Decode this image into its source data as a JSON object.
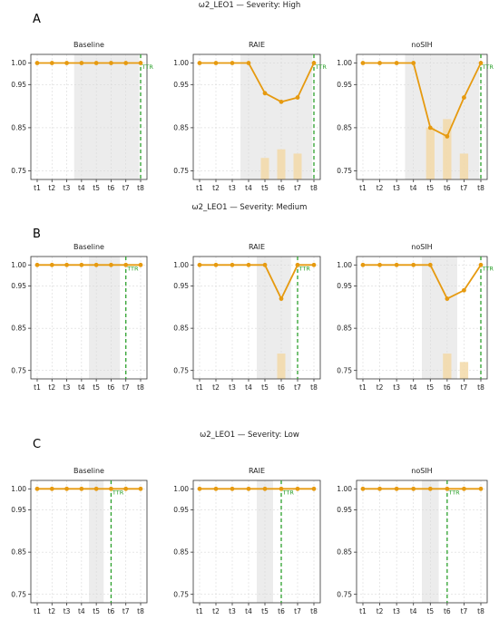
{
  "chart_data": [
    {
      "row": "A",
      "title": "ω2_LEO1 — Severity: High",
      "panels": [
        {
          "type": "line",
          "title": "Baseline",
          "x": [
            "t1",
            "t2",
            "t3",
            "t4",
            "t5",
            "t6",
            "t7",
            "t8"
          ],
          "values": [
            1.0,
            1.0,
            1.0,
            1.0,
            1.0,
            1.0,
            1.0,
            1.0
          ],
          "bars": [
            0,
            0,
            0,
            0,
            0,
            0,
            0,
            0
          ],
          "shade": [
            3.5,
            7.9
          ],
          "ttr_at": 8,
          "ttr_label": "TTR",
          "yticks": [
            "0.75",
            "0.85",
            "0.95",
            "1.00"
          ],
          "ylim": [
            0.73,
            1.02
          ]
        },
        {
          "type": "line",
          "title": "RAIE",
          "x": [
            "t1",
            "t2",
            "t3",
            "t4",
            "t5",
            "t6",
            "t7",
            "t8"
          ],
          "values": [
            1.0,
            1.0,
            1.0,
            1.0,
            0.93,
            0.91,
            0.92,
            1.0
          ],
          "bars": [
            0,
            0,
            0,
            0,
            0.78,
            0.8,
            0.79,
            0
          ],
          "shade": [
            3.5,
            7.9
          ],
          "ttr_at": 8,
          "ttr_label": "TTR",
          "yticks": [
            "0.75",
            "0.85",
            "0.95",
            "1.00"
          ],
          "ylim": [
            0.73,
            1.02
          ]
        },
        {
          "type": "line",
          "title": "noSIH",
          "x": [
            "t1",
            "t2",
            "t3",
            "t4",
            "t5",
            "t6",
            "t7",
            "t8"
          ],
          "values": [
            1.0,
            1.0,
            1.0,
            1.0,
            0.85,
            0.83,
            0.92,
            1.0
          ],
          "bars": [
            0,
            0,
            0,
            0,
            0.85,
            0.87,
            0.79,
            0
          ],
          "shade": [
            3.5,
            7.9
          ],
          "ttr_at": 8,
          "ttr_label": "TTR",
          "yticks": [
            "0.75",
            "0.85",
            "0.95",
            "1.00"
          ],
          "ylim": [
            0.73,
            1.02
          ]
        }
      ]
    },
    {
      "row": "B",
      "title": "ω2_LEO1 — Severity: Medium",
      "panels": [
        {
          "type": "line",
          "title": "Baseline",
          "x": [
            "t1",
            "t2",
            "t3",
            "t4",
            "t5",
            "t6",
            "t7",
            "t8"
          ],
          "values": [
            1.0,
            1.0,
            1.0,
            1.0,
            1.0,
            1.0,
            1.0,
            1.0
          ],
          "bars": [
            0,
            0,
            0,
            0,
            0,
            0,
            0,
            0
          ],
          "shade": [
            4.5,
            6.6
          ],
          "ttr_at": 7,
          "ttr_label": "TTR",
          "yticks": [
            "0.75",
            "0.85",
            "0.95",
            "1.00"
          ],
          "ylim": [
            0.73,
            1.02
          ]
        },
        {
          "type": "line",
          "title": "RAIE",
          "x": [
            "t1",
            "t2",
            "t3",
            "t4",
            "t5",
            "t6",
            "t7",
            "t8"
          ],
          "values": [
            1.0,
            1.0,
            1.0,
            1.0,
            1.0,
            0.92,
            1.0,
            1.0
          ],
          "bars": [
            0,
            0,
            0,
            0,
            0,
            0.79,
            0,
            0
          ],
          "shade": [
            4.5,
            6.6
          ],
          "ttr_at": 7,
          "ttr_label": "TTR",
          "yticks": [
            "0.75",
            "0.85",
            "0.95",
            "1.00"
          ],
          "ylim": [
            0.73,
            1.02
          ]
        },
        {
          "type": "line",
          "title": "noSIH",
          "x": [
            "t1",
            "t2",
            "t3",
            "t4",
            "t5",
            "t6",
            "t7",
            "t8"
          ],
          "values": [
            1.0,
            1.0,
            1.0,
            1.0,
            1.0,
            0.92,
            0.94,
            1.0
          ],
          "bars": [
            0,
            0,
            0,
            0,
            0,
            0.79,
            0.77,
            0
          ],
          "shade": [
            4.5,
            6.6
          ],
          "ttr_at": 8,
          "ttr_label": "TTR",
          "yticks": [
            "0.75",
            "0.85",
            "0.95",
            "1.00"
          ],
          "ylim": [
            0.73,
            1.02
          ]
        }
      ]
    },
    {
      "row": "C",
      "title": "ω2_LEO1 — Severity: Low",
      "panels": [
        {
          "type": "line",
          "title": "Baseline",
          "x": [
            "t1",
            "t2",
            "t3",
            "t4",
            "t5",
            "t6",
            "t7",
            "t8"
          ],
          "values": [
            1.0,
            1.0,
            1.0,
            1.0,
            1.0,
            1.0,
            1.0,
            1.0
          ],
          "bars": [
            0,
            0,
            0,
            0,
            0,
            0,
            0,
            0
          ],
          "shade": [
            4.5,
            5.5
          ],
          "ttr_at": 6,
          "ttr_label": "TTR",
          "yticks": [
            "0.75",
            "0.85",
            "0.95",
            "1.00"
          ],
          "ylim": [
            0.73,
            1.02
          ]
        },
        {
          "type": "line",
          "title": "RAIE",
          "x": [
            "t1",
            "t2",
            "t3",
            "t4",
            "t5",
            "t6",
            "t7",
            "t8"
          ],
          "values": [
            1.0,
            1.0,
            1.0,
            1.0,
            1.0,
            1.0,
            1.0,
            1.0
          ],
          "bars": [
            0,
            0,
            0,
            0,
            0,
            0,
            0,
            0
          ],
          "shade": [
            4.5,
            5.5
          ],
          "ttr_at": 6,
          "ttr_label": "TTR",
          "yticks": [
            "0.75",
            "0.85",
            "0.95",
            "1.00"
          ],
          "ylim": [
            0.73,
            1.02
          ]
        },
        {
          "type": "line",
          "title": "noSIH",
          "x": [
            "t1",
            "t2",
            "t3",
            "t4",
            "t5",
            "t6",
            "t7",
            "t8"
          ],
          "values": [
            1.0,
            1.0,
            1.0,
            1.0,
            1.0,
            1.0,
            1.0,
            1.0
          ],
          "bars": [
            0,
            0,
            0,
            0,
            0,
            0,
            0,
            0
          ],
          "shade": [
            4.5,
            5.5
          ],
          "ttr_at": 6,
          "ttr_label": "TTR",
          "yticks": [
            "0.75",
            "0.85",
            "0.95",
            "1.00"
          ],
          "ylim": [
            0.73,
            1.02
          ]
        }
      ]
    }
  ],
  "colors": {
    "line": "#e69a10",
    "bar": "#f3d9a8",
    "shade": "#ececec",
    "ttr": "#2ca02c",
    "grid": "#d9d9d9",
    "axis": "#333333"
  }
}
